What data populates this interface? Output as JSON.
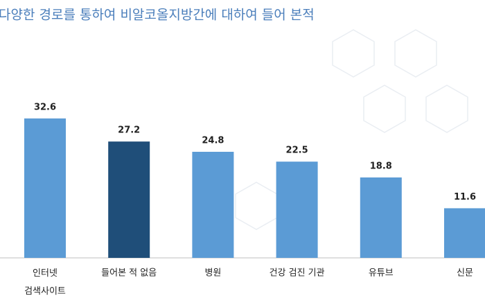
{
  "chart_data": {
    "type": "bar",
    "title": "다양한 경로를 통하여 비알코올지방간에 대하여 들어 본적",
    "categories": [
      [
        "인터넷",
        "검색사이트"
      ],
      "들어본 적 없음",
      "병원",
      "건강 검진 기관",
      "유튜브",
      "신문"
    ],
    "values": [
      32.6,
      27.2,
      24.8,
      22.5,
      18.8,
      11.6
    ],
    "colors": [
      "#5b9bd5",
      "#1f4e79",
      "#5b9bd5",
      "#5b9bd5",
      "#5b9bd5",
      "#5b9bd5"
    ]
  }
}
